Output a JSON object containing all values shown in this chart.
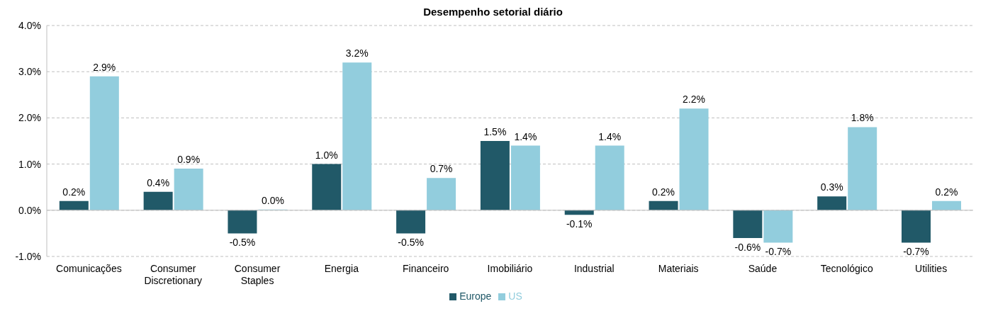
{
  "chart_data": {
    "type": "bar",
    "title": "Desempenho setorial diário",
    "categories": [
      "Comunicações",
      "Consumer Discretionary",
      "Consumer Staples",
      "Energia",
      "Financeiro",
      "Imobiliário",
      "Industrial",
      "Materiais",
      "Saúde",
      "Tecnológico",
      "Utilities"
    ],
    "series": [
      {
        "name": "Europe",
        "color": "#215968",
        "values": [
          0.2,
          0.4,
          -0.5,
          1.0,
          -0.5,
          1.5,
          -0.1,
          0.2,
          -0.6,
          0.3,
          -0.7
        ],
        "value_labels": [
          "0.2%",
          "0.4%",
          "-0.5%",
          "1.0%",
          "-0.5%",
          "1.5%",
          "-0.1%",
          "0.2%",
          "-0.6%",
          "0.3%",
          "-0.7%"
        ]
      },
      {
        "name": "US",
        "color": "#92cddd",
        "values": [
          2.9,
          0.9,
          0.0,
          3.2,
          0.7,
          1.4,
          1.4,
          2.2,
          -0.7,
          1.8,
          0.2
        ],
        "value_labels": [
          "2.9%",
          "0.9%",
          "0.0%",
          "3.2%",
          "0.7%",
          "1.4%",
          "1.4%",
          "2.2%",
          "-0.7%",
          "1.8%",
          "0.2%"
        ]
      }
    ],
    "ylim": [
      -1,
      4
    ],
    "yticks": [
      {
        "value": -1,
        "label": "-1.0%"
      },
      {
        "value": 0,
        "label": "0.0%"
      },
      {
        "value": 1,
        "label": "1.0%"
      },
      {
        "value": 2,
        "label": "2.0%"
      },
      {
        "value": 3,
        "label": "3.0%"
      },
      {
        "value": 4,
        "label": "4.0%"
      }
    ],
    "grid": "y",
    "legend": "bottom"
  }
}
